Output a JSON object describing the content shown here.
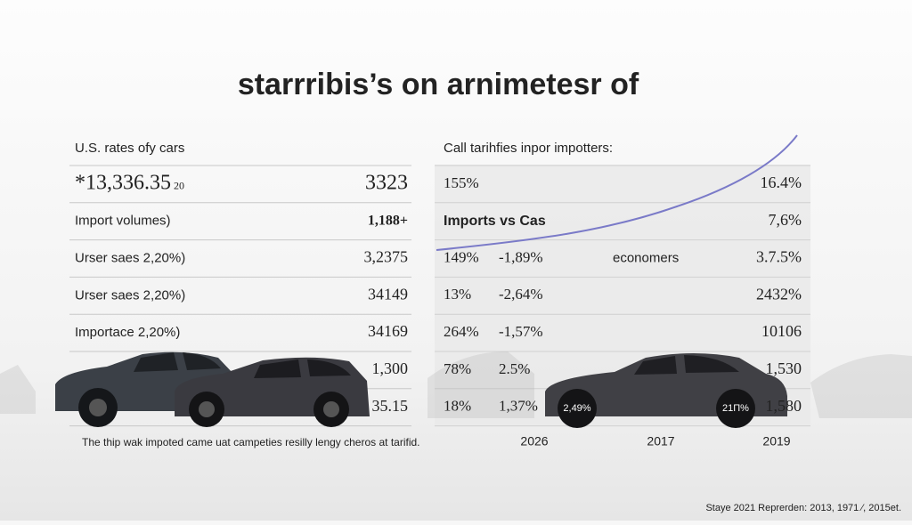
{
  "title": "starrribis’s on arnimetesr of",
  "left_table": {
    "caption": "U.S. rates ofy cars",
    "rows": [
      {
        "label": "*13,336.35",
        "note": "20",
        "value": "3323"
      },
      {
        "label": "Import volumes)",
        "value": "1,188+"
      },
      {
        "label": "Urser saes 2,20%)",
        "value": "3,2375"
      },
      {
        "label": "Urser saes 2,20%)",
        "value": "34149"
      },
      {
        "label": "Importace 2,20%)",
        "value": "34169"
      },
      {
        "value": "1,300"
      },
      {
        "value": "35.15"
      }
    ],
    "footnote": "The thip wak impoted came uat campeties resilly lengy cheros at tarifid."
  },
  "right_table": {
    "caption": "Call tarihfies inpor impotters:",
    "rows": [
      {
        "c1": "155%",
        "value": "16.4%"
      },
      {
        "c1": "Imports vs Cas",
        "value": "7,6%"
      },
      {
        "c1": "149%",
        "c2": "-1,89%",
        "mid": "economers",
        "value": "3.7.5%"
      },
      {
        "c1": "13%",
        "c2": "-2,64%",
        "value": "2432%"
      },
      {
        "c1": "264%",
        "c2": "-1,57%",
        "value": "10106"
      },
      {
        "c1": "78%",
        "c2": "2.5%",
        "value": "1,530"
      },
      {
        "c1": "18%",
        "c2": "1,37%",
        "value": "1,580"
      }
    ],
    "car_labels": [
      "2,49%",
      "21П%"
    ],
    "x_labels": [
      "2026",
      "2017",
      "2019"
    ]
  },
  "source": "Staye 2021 Reprerden: 2013, 1971 ⁄, 2015et."
}
